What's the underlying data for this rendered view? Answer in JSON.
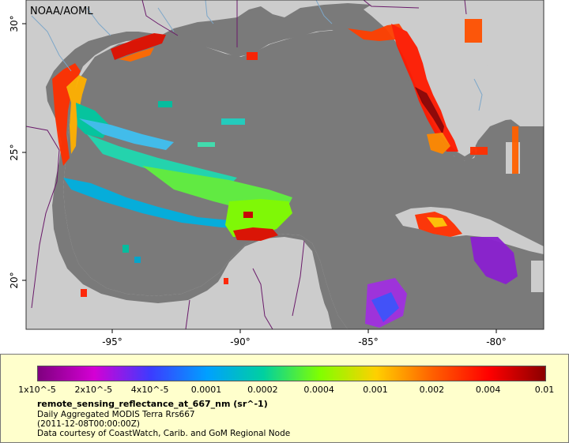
{
  "map": {
    "credit": "NOAA/AOML",
    "lon_labels": [
      "-95°",
      "-90°",
      "-85°",
      "-80°"
    ],
    "lat_labels": [
      "30°",
      "25°",
      "20°"
    ],
    "colors": {
      "ocean": "#7a7a7a",
      "land": "#cccccc",
      "border": "#6a1a6a",
      "river": "#7da7c9",
      "frame": "#333333"
    }
  },
  "colorbar": {
    "tick_labels": [
      "1x10^-5",
      "2x10^-5",
      "4x10^-5",
      "0.0001",
      "0.0002",
      "0.0004",
      "0.001",
      "0.002",
      "0.004",
      "0.01"
    ],
    "gradient": [
      "#7f007f",
      "#d400d4",
      "#3c3cff",
      "#00a0ff",
      "#00d0a0",
      "#80ff00",
      "#ffd000",
      "#ff6000",
      "#ff0000",
      "#8b0000"
    ]
  },
  "legend": {
    "title": "remote_sensing_reflectance_at_667_nm (sr^-1)",
    "line1": "Daily Aggregated MODIS Terra Rrs667",
    "line2": "(2011-12-08T00:00:00Z)",
    "line3": "Data courtesy of CoastWatch, Carib. and GoM Regional Node"
  }
}
